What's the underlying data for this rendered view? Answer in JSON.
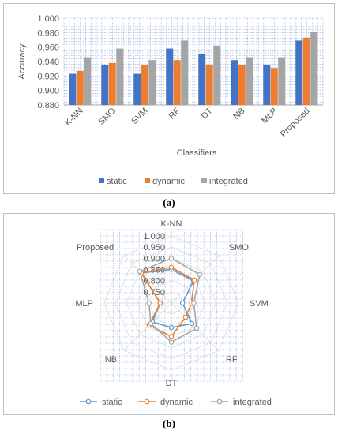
{
  "chart_data": [
    {
      "type": "bar",
      "categories": [
        "K-NN",
        "SMO",
        "SVM",
        "RF",
        "DT",
        "NB",
        "MLP",
        "Proposed"
      ],
      "series": [
        {
          "name": "static",
          "values": [
            0.923,
            0.935,
            0.923,
            0.958,
            0.95,
            0.942,
            0.935,
            0.969
          ],
          "color": "#4472c4"
        },
        {
          "name": "dynamic",
          "values": [
            0.927,
            0.938,
            0.935,
            0.942,
            0.935,
            0.935,
            0.931,
            0.973
          ],
          "color": "#ed7d31"
        },
        {
          "name": "integrated",
          "values": [
            0.946,
            0.958,
            0.942,
            0.969,
            0.962,
            0.946,
            0.946,
            0.981
          ],
          "color": "#a5a5a5"
        }
      ],
      "xlabel": "Classifiers",
      "ylabel": "Accuracy",
      "ylim": [
        0.88,
        1.0
      ],
      "yticks": [
        "1.000",
        "0.980",
        "0.960",
        "0.940",
        "0.920",
        "0.900",
        "0.880"
      ],
      "grid": true,
      "legend": "bottom",
      "caption": "(a)"
    },
    {
      "type": "radar",
      "categories": [
        "K-NN",
        "SMO",
        "SVM",
        "RF",
        "DT",
        "NB",
        "MLP",
        "Proposed"
      ],
      "series": [
        {
          "name": "static",
          "values": [
            0.85,
            0.84,
            0.75,
            0.83,
            0.81,
            0.82,
            0.75,
            0.89
          ],
          "color": "#5b9bd5"
        },
        {
          "name": "dynamic",
          "values": [
            0.86,
            0.845,
            0.79,
            0.79,
            0.85,
            0.84,
            0.75,
            0.89
          ],
          "color": "#ed7d31"
        },
        {
          "name": "integrated",
          "values": [
            0.9,
            0.88,
            0.8,
            0.86,
            0.875,
            0.83,
            0.8,
            0.9
          ],
          "color": "#a5a5a5"
        }
      ],
      "rlim": [
        0.7,
        1.0
      ],
      "rticks": [
        "1.000",
        "0.950",
        "0.900",
        "0.850",
        "0.800",
        "0.750"
      ],
      "grid": true,
      "legend": "bottom",
      "caption": "(b)"
    }
  ]
}
